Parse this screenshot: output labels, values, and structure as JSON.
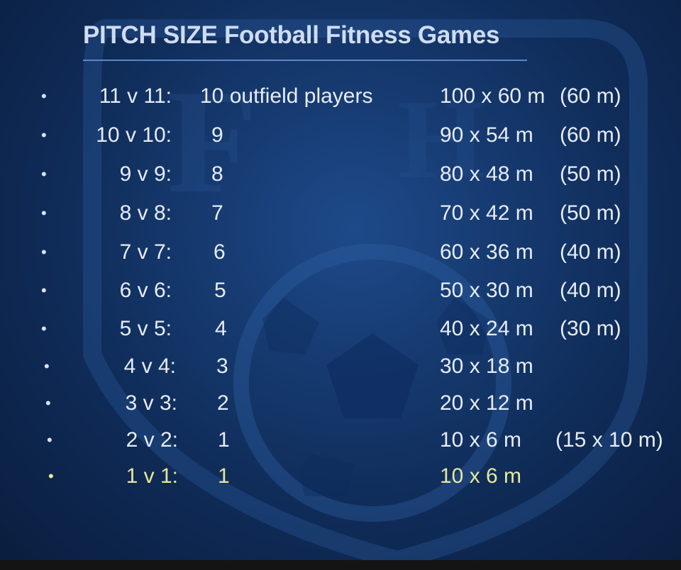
{
  "title": "PITCH SIZE Football Fitness Games",
  "rows": [
    {
      "match": "11 v 11:",
      "players": "10 outfield players",
      "size": "100 x 60 m",
      "alt": "(60 m)"
    },
    {
      "match": "10 v 10:",
      "players": "9",
      "size": "90 x 54 m",
      "alt": "(60 m)"
    },
    {
      "match": "9 v 9:",
      "players": "8",
      "size": "80 x 48 m",
      "alt": "(50 m)"
    },
    {
      "match": "8 v 8:",
      "players": "7",
      "size": "70 x 42 m",
      "alt": "(50 m)"
    },
    {
      "match": "7 v 7:",
      "players": "6",
      "size": "60 x 36 m",
      "alt": "(40 m)"
    },
    {
      "match": "6 v 6:",
      "players": "5",
      "size": "50 x 30 m",
      "alt": "(40 m)"
    },
    {
      "match": "5 v 5:",
      "players": "4",
      "size": "40 x 24 m",
      "alt": "(30 m)"
    },
    {
      "match": "4 v 4:",
      "players": "3",
      "size": "30 x 18 m",
      "alt": ""
    },
    {
      "match": "3 v 3:",
      "players": "2",
      "size": "20 x 12 m",
      "alt": ""
    },
    {
      "match": "2 v 2:",
      "players": "1",
      "size": "10 x  6 m",
      "alt": "(15 x 10 m)"
    },
    {
      "match": "1 v 1:",
      "players": "1",
      "size": "10 x  6 m",
      "alt": ""
    }
  ],
  "bullet_symbol": "•",
  "colors": {
    "text": "#e6ecf7",
    "highlight": "#e8e89a",
    "rule": "#5d86c6"
  }
}
